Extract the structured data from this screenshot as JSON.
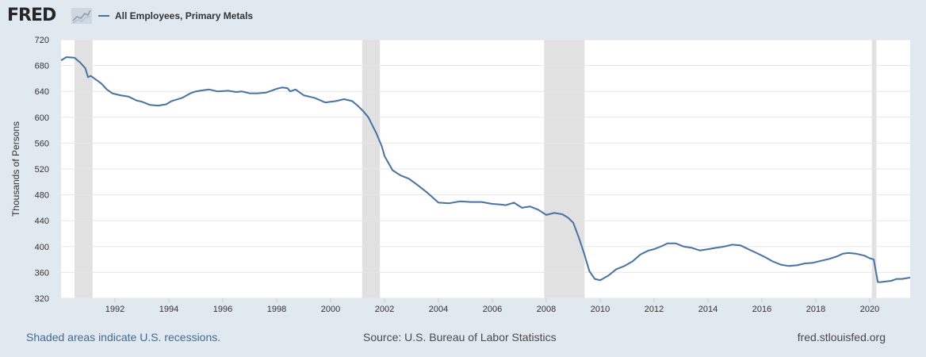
{
  "header": {
    "logo_text": "FRED",
    "legend_label": "All Employees, Primary Metals"
  },
  "footer": {
    "recession_note": "Shaded areas indicate U.S. recessions.",
    "source": "Source: U.S. Bureau of Labor Statistics",
    "site": "fred.stlouisfed.org"
  },
  "colors": {
    "line": "#4572a7",
    "recession": "#e1e1e1",
    "page_background": "#e1e9f0",
    "plot_background": "#ffffff",
    "grid": "#e6e6e6"
  },
  "chart_data": {
    "type": "line",
    "ylabel": "Thousands of Persons",
    "xlim": [
      1990.0,
      2021.5
    ],
    "ylim": [
      320,
      720
    ],
    "x_ticks": [
      1992,
      1994,
      1996,
      1998,
      2000,
      2002,
      2004,
      2006,
      2008,
      2010,
      2012,
      2014,
      2016,
      2018,
      2020
    ],
    "x_tick_labels": [
      "1992",
      "1994",
      "1996",
      "1998",
      "2000",
      "2002",
      "2004",
      "2006",
      "2008",
      "2010",
      "2012",
      "2014",
      "2016",
      "2018",
      "2020"
    ],
    "y_ticks": [
      320,
      360,
      400,
      440,
      480,
      520,
      560,
      600,
      640,
      680,
      720
    ],
    "y_tick_labels": [
      "320",
      "360",
      "400",
      "440",
      "480",
      "520",
      "560",
      "600",
      "640",
      "680",
      "720"
    ],
    "grid": "horizontal",
    "legend": "top-left",
    "recessions": [
      [
        1990.5,
        1991.17
      ],
      [
        2001.17,
        2001.83
      ],
      [
        2007.92,
        2009.42
      ],
      [
        2020.08,
        2020.25
      ]
    ],
    "series": [
      {
        "name": "All Employees, Primary Metals",
        "x": [
          1990.0,
          1990.2,
          1990.5,
          1990.7,
          1990.9,
          1991.0,
          1991.1,
          1991.3,
          1991.5,
          1991.7,
          1991.9,
          1992.2,
          1992.5,
          1992.8,
          1993.0,
          1993.3,
          1993.6,
          1993.9,
          1994.1,
          1994.5,
          1994.8,
          1995.0,
          1995.3,
          1995.5,
          1995.8,
          1996.2,
          1996.5,
          1996.7,
          1997.0,
          1997.3,
          1997.6,
          1998.0,
          1998.2,
          1998.4,
          1998.5,
          1998.7,
          1999.0,
          1999.4,
          1999.8,
          2000.2,
          2000.5,
          2000.8,
          2001.0,
          2001.2,
          2001.4,
          2001.7,
          2001.9,
          2002.0,
          2002.3,
          2002.6,
          2002.9,
          2003.2,
          2003.6,
          2004.0,
          2004.4,
          2004.8,
          2005.2,
          2005.6,
          2006.0,
          2006.3,
          2006.5,
          2006.8,
          2007.1,
          2007.4,
          2007.7,
          2008.0,
          2008.3,
          2008.6,
          2008.8,
          2009.0,
          2009.2,
          2009.4,
          2009.6,
          2009.8,
          2010.0,
          2010.3,
          2010.6,
          2010.9,
          2011.2,
          2011.5,
          2011.8,
          2012.0,
          2012.3,
          2012.5,
          2012.8,
          2013.1,
          2013.4,
          2013.7,
          2014.0,
          2014.3,
          2014.6,
          2014.9,
          2015.2,
          2015.5,
          2015.8,
          2016.1,
          2016.4,
          2016.7,
          2017.0,
          2017.3,
          2017.6,
          2017.9,
          2018.2,
          2018.5,
          2018.8,
          2019.0,
          2019.2,
          2019.5,
          2019.8,
          2020.0,
          2020.15,
          2020.3,
          2020.4,
          2020.6,
          2020.8,
          2021.0,
          2021.2,
          2021.5
        ],
        "values": [
          688,
          693,
          692,
          685,
          676,
          662,
          664,
          658,
          652,
          643,
          637,
          634,
          632,
          626,
          624,
          619,
          618,
          620,
          625,
          630,
          637,
          640,
          642,
          643,
          640,
          641,
          639,
          640,
          637,
          637,
          638,
          644,
          646,
          645,
          640,
          643,
          634,
          630,
          623,
          625,
          628,
          625,
          618,
          610,
          600,
          575,
          555,
          540,
          518,
          510,
          505,
          496,
          483,
          468,
          467,
          470,
          469,
          469,
          466,
          465,
          464,
          468,
          460,
          462,
          457,
          449,
          452,
          450,
          445,
          437,
          415,
          390,
          362,
          350,
          348,
          355,
          365,
          370,
          377,
          388,
          394,
          396,
          401,
          405,
          405,
          400,
          398,
          394,
          396,
          398,
          400,
          403,
          402,
          396,
          390,
          384,
          377,
          372,
          370,
          371,
          374,
          375,
          378,
          381,
          385,
          389,
          390,
          389,
          386,
          382,
          380,
          345,
          345,
          346,
          347,
          350,
          350,
          352
        ]
      }
    ]
  }
}
